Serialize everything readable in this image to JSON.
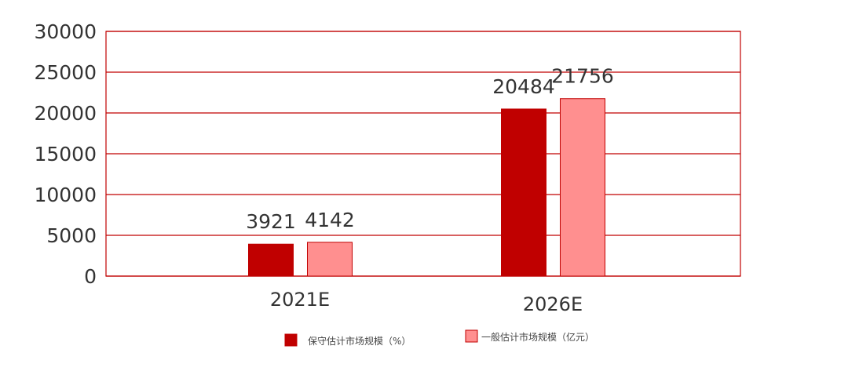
{
  "chart_data": {
    "type": "bar",
    "categories": [
      "2021E",
      "2026E"
    ],
    "series": [
      {
        "name": "保守估计市场规模（%）",
        "values": [
          3921,
          20484
        ],
        "color": "#c00000"
      },
      {
        "name": "一般估计市场规模（亿元）",
        "values": [
          4142,
          21756
        ],
        "color": "#ff8f8f"
      }
    ],
    "ylim": [
      0,
      30000
    ],
    "yticks": [
      0,
      5000,
      10000,
      15000,
      20000,
      25000,
      30000
    ],
    "grid": true,
    "legend_position": "bottom",
    "gridColor": "#c00000"
  }
}
